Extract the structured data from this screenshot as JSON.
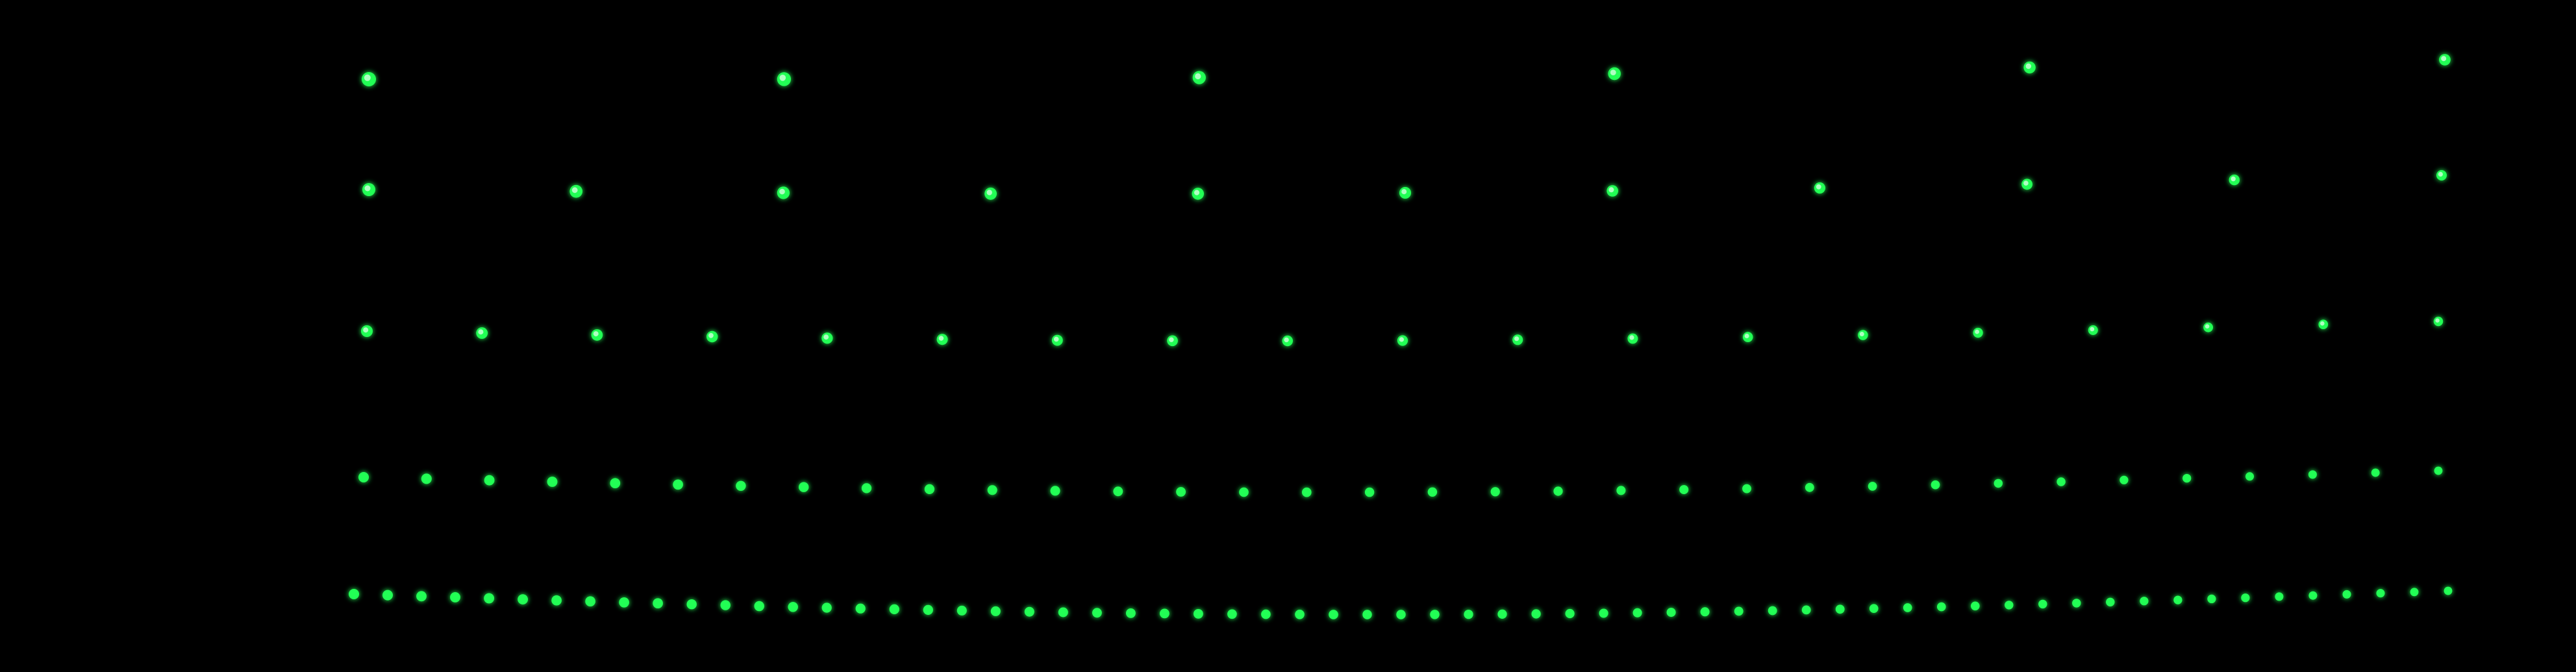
{
  "image": {
    "background_color": "#000000",
    "dot_color": "#22ff55",
    "dot_core_color": "#c8ffd6",
    "rows": [
      {
        "name": "row-1",
        "dot_count": 6
      },
      {
        "name": "row-2",
        "dot_count": 11
      },
      {
        "name": "row-3",
        "dot_count": 19
      },
      {
        "name": "row-4",
        "dot_count": 34
      },
      {
        "name": "row-5",
        "dot_count": 63
      }
    ]
  }
}
